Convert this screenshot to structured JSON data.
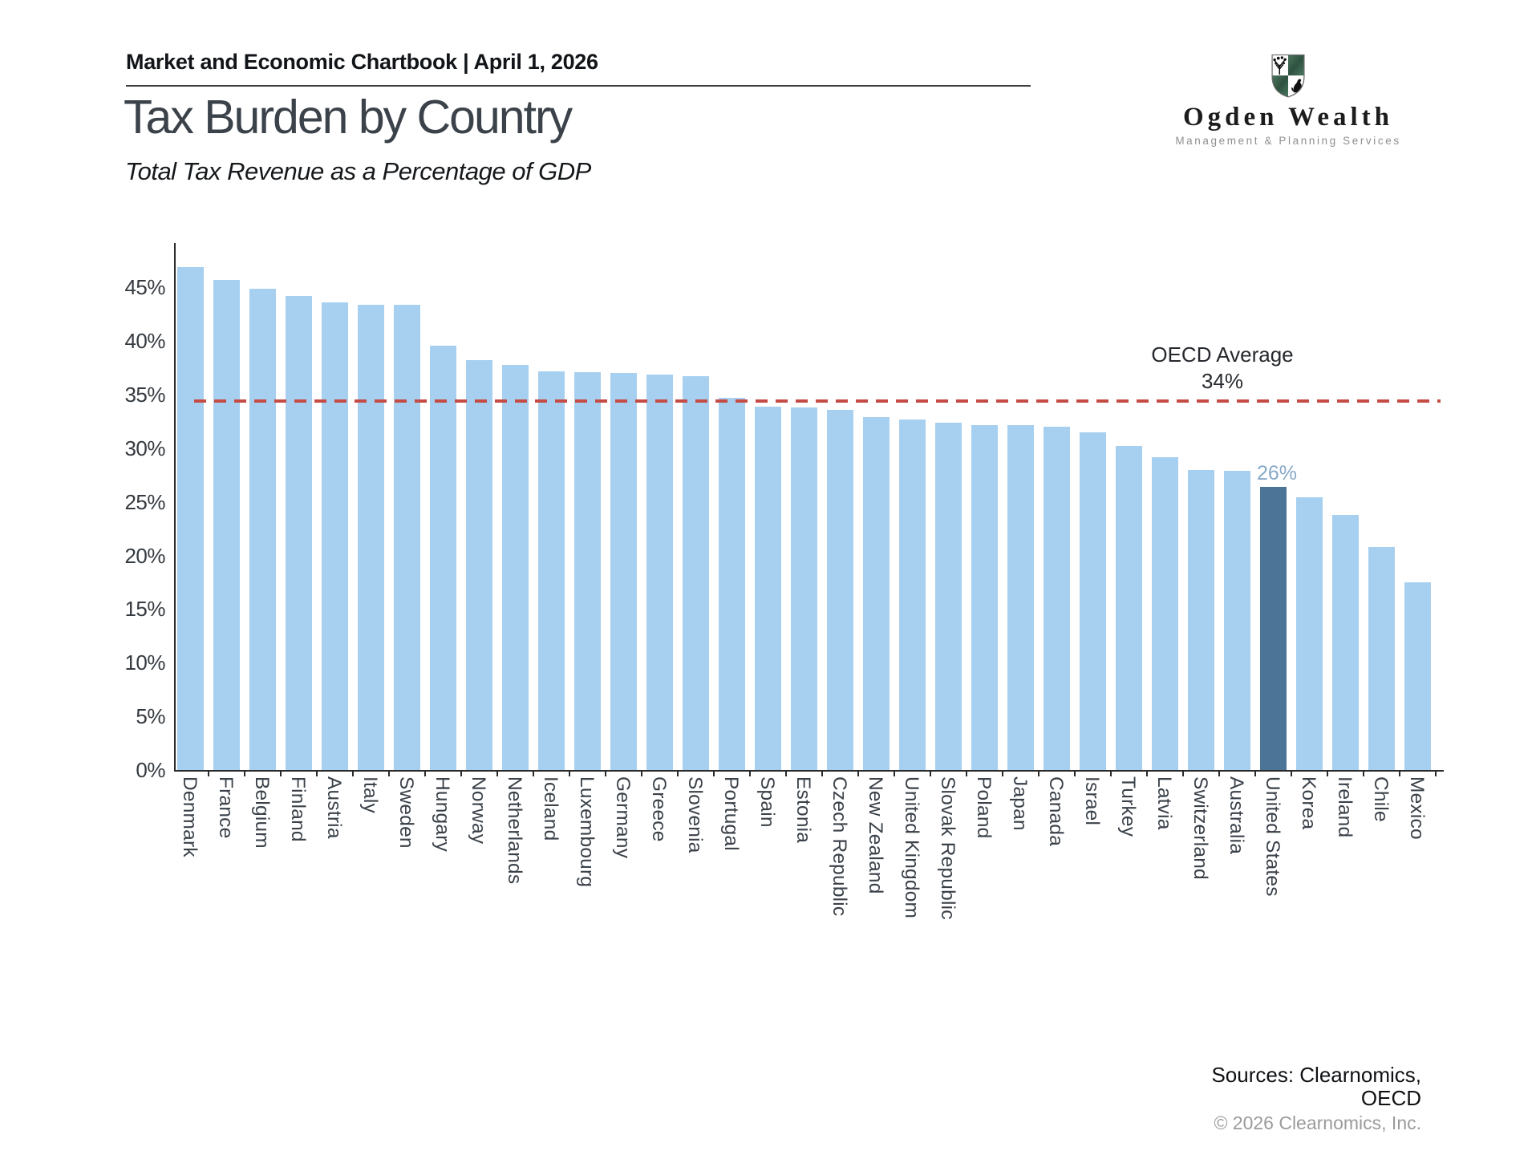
{
  "header": {
    "chartbook_line": "Market and Economic Chartbook | April 1, 2026"
  },
  "logo": {
    "name": "Ogden Wealth",
    "tagline": "Management & Planning Services",
    "shield_green": "#38604c"
  },
  "title": "Tax Burden by Country",
  "subtitle": "Total Tax Revenue as a Percentage of GDP",
  "chart_data": {
    "type": "bar",
    "title": "Tax Burden by Country",
    "subtitle": "Total Tax Revenue as a Percentage of GDP",
    "ylabel": "Total Tax Revenue as a Percentage of GDP",
    "ylim": [
      0,
      49
    ],
    "ytick_step": 5,
    "ytick_labels": [
      "0%",
      "5%",
      "10%",
      "15%",
      "20%",
      "25%",
      "30%",
      "35%",
      "40%",
      "45%"
    ],
    "grid": false,
    "categories": [
      "Denmark",
      "France",
      "Belgium",
      "Finland",
      "Austria",
      "Italy",
      "Sweden",
      "Hungary",
      "Norway",
      "Netherlands",
      "Iceland",
      "Luxembourg",
      "Germany",
      "Greece",
      "Slovenia",
      "Portugal",
      "Spain",
      "Estonia",
      "Czech Republic",
      "New Zealand",
      "United Kingdom",
      "Slovak Republic",
      "Poland",
      "Japan",
      "Canada",
      "Israel",
      "Turkey",
      "Latvia",
      "Switzerland",
      "Australia",
      "United States",
      "Korea",
      "Ireland",
      "Chile",
      "Mexico"
    ],
    "values": [
      46.9,
      45.7,
      44.9,
      44.2,
      43.6,
      43.4,
      43.4,
      39.6,
      38.2,
      37.8,
      37.2,
      37.1,
      37.0,
      36.9,
      36.7,
      34.7,
      33.9,
      33.8,
      33.6,
      32.9,
      32.7,
      32.4,
      32.2,
      32.2,
      32.0,
      31.5,
      30.2,
      29.2,
      28.0,
      27.9,
      26.4,
      25.4,
      23.8,
      20.8,
      17.5
    ],
    "highlight_country": "United States",
    "highlight_label": "26%",
    "average_line": {
      "value": 34.4,
      "label_line1": "OECD Average",
      "label_line2": "34%"
    },
    "colors": {
      "bar": "#a7d0f0",
      "highlight_bar": "#4c7497",
      "highlight_label": "#87a9c9",
      "average_line": "#c54b45"
    }
  },
  "footer": {
    "sources_line1": "Sources: Clearnomics,",
    "sources_line2": "OECD",
    "copyright": "© 2026 Clearnomics, Inc."
  }
}
